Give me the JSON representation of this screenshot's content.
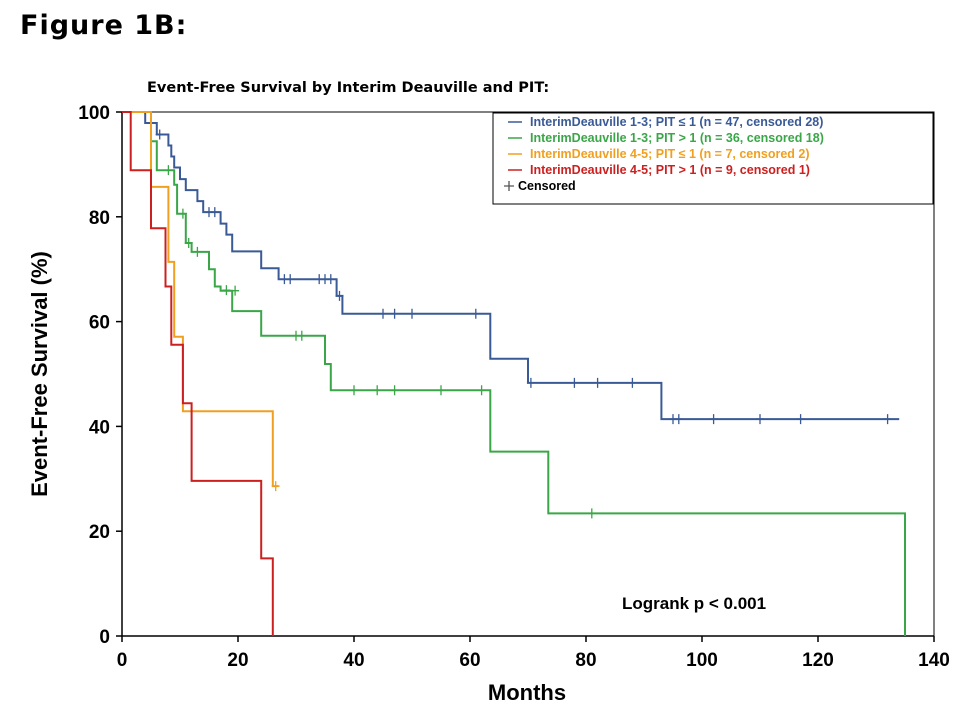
{
  "figure_label": "Figure 1B:",
  "chart_data": {
    "type": "line",
    "subtype": "kaplan-meier step",
    "title": "Event-Free Survival by Interim Deauville and PIT:",
    "xlabel": "Months",
    "ylabel": "Event-Free Survival (%)",
    "xlim": [
      0,
      140
    ],
    "ylim": [
      0,
      100
    ],
    "xticks": [
      "0",
      "20",
      "40",
      "60",
      "80",
      "100",
      "120",
      "140"
    ],
    "yticks": [
      "0",
      "20",
      "40",
      "60",
      "80",
      "100"
    ],
    "grid": false,
    "legend_position": "top-right",
    "annotation": "Logrank p < 0.001",
    "censored_legend_label": "Censored",
    "series": [
      {
        "name": "InterimDeauville 1-3; PIT ≤ 1 (n = 47, censored 28)",
        "color": "#3a5a96",
        "steps": [
          [
            0,
            100
          ],
          [
            4,
            100
          ],
          [
            4,
            97.9
          ],
          [
            6,
            97.9
          ],
          [
            6,
            95.7
          ],
          [
            8,
            95.7
          ],
          [
            8,
            93.6
          ],
          [
            8.5,
            93.6
          ],
          [
            8.5,
            91.5
          ],
          [
            9,
            91.5
          ],
          [
            9,
            89.4
          ],
          [
            10,
            89.4
          ],
          [
            10,
            87.2
          ],
          [
            11,
            87.2
          ],
          [
            11,
            85.1
          ],
          [
            13,
            85.1
          ],
          [
            13,
            83.0
          ],
          [
            14,
            83.0
          ],
          [
            14,
            80.9
          ],
          [
            17,
            80.9
          ],
          [
            17,
            78.7
          ],
          [
            18,
            78.7
          ],
          [
            18,
            76.6
          ],
          [
            19,
            76.6
          ],
          [
            19,
            73.4
          ],
          [
            24,
            73.4
          ],
          [
            24,
            70.2
          ],
          [
            27,
            70.2
          ],
          [
            27,
            68.1
          ],
          [
            37,
            68.1
          ],
          [
            37,
            64.9
          ],
          [
            38,
            64.9
          ],
          [
            38,
            61.5
          ],
          [
            63.5,
            61.5
          ],
          [
            63.5,
            52.9
          ],
          [
            70,
            52.9
          ],
          [
            70,
            48.3
          ],
          [
            93,
            48.3
          ],
          [
            93,
            41.4
          ],
          [
            134,
            41.4
          ]
        ],
        "censored": [
          [
            5,
            97.9
          ],
          [
            6.5,
            95.7
          ],
          [
            15,
            80.9
          ],
          [
            16,
            80.9
          ],
          [
            28,
            68.1
          ],
          [
            29,
            68.1
          ],
          [
            34,
            68.1
          ],
          [
            35,
            68.1
          ],
          [
            36,
            68.1
          ],
          [
            37.5,
            64.9
          ],
          [
            45,
            61.5
          ],
          [
            47,
            61.5
          ],
          [
            50,
            61.5
          ],
          [
            61,
            61.5
          ],
          [
            70.5,
            48.3
          ],
          [
            78,
            48.3
          ],
          [
            82,
            48.3
          ],
          [
            88,
            48.3
          ],
          [
            95,
            41.4
          ],
          [
            96,
            41.4
          ],
          [
            102,
            41.4
          ],
          [
            110,
            41.4
          ],
          [
            117,
            41.4
          ],
          [
            132,
            41.4
          ]
        ]
      },
      {
        "name": "InterimDeauville 1-3; PIT > 1 (n = 36, censored 18)",
        "color": "#3aa648",
        "steps": [
          [
            0,
            100
          ],
          [
            5,
            100
          ],
          [
            5,
            94.4
          ],
          [
            6,
            94.4
          ],
          [
            6,
            88.9
          ],
          [
            9,
            88.9
          ],
          [
            9,
            86.1
          ],
          [
            9.5,
            86.1
          ],
          [
            9.5,
            80.6
          ],
          [
            11,
            80.6
          ],
          [
            11,
            75.0
          ],
          [
            12,
            75.0
          ],
          [
            12,
            73.3
          ],
          [
            15,
            73.3
          ],
          [
            15,
            70.0
          ],
          [
            16,
            70.0
          ],
          [
            16,
            66.7
          ],
          [
            17,
            66.7
          ],
          [
            17,
            65.9
          ],
          [
            19,
            65.9
          ],
          [
            19,
            62.0
          ],
          [
            24,
            62.0
          ],
          [
            24,
            57.3
          ],
          [
            35,
            57.3
          ],
          [
            35,
            51.9
          ],
          [
            36,
            51.9
          ],
          [
            36,
            46.9
          ],
          [
            63.5,
            46.9
          ],
          [
            63.5,
            35.2
          ],
          [
            73.5,
            35.2
          ],
          [
            73.5,
            23.4
          ],
          [
            135,
            23.4
          ],
          [
            135,
            0
          ]
        ],
        "censored": [
          [
            8,
            88.9
          ],
          [
            10.5,
            80.6
          ],
          [
            11.5,
            75.0
          ],
          [
            13,
            73.3
          ],
          [
            18,
            66.0
          ],
          [
            19.5,
            65.9
          ],
          [
            30,
            57.3
          ],
          [
            31,
            57.3
          ],
          [
            40,
            46.9
          ],
          [
            44,
            46.9
          ],
          [
            47,
            46.9
          ],
          [
            55,
            46.9
          ],
          [
            62,
            46.9
          ],
          [
            81,
            23.4
          ]
        ]
      },
      {
        "name": "InterimDeauville 4-5; PIT ≤ 1 (n = 7, censored 2)",
        "color": "#f0a020",
        "steps": [
          [
            0,
            100
          ],
          [
            5,
            100
          ],
          [
            5,
            85.7
          ],
          [
            8,
            85.7
          ],
          [
            8,
            71.4
          ],
          [
            9,
            71.4
          ],
          [
            9,
            57.1
          ],
          [
            10,
            57.1
          ],
          [
            10,
            57.1
          ],
          [
            10.5,
            57.1
          ],
          [
            10.5,
            42.9
          ],
          [
            26,
            42.9
          ],
          [
            26,
            28.6
          ],
          [
            27,
            28.6
          ]
        ],
        "censored": [
          [
            26.5,
            28.6
          ]
        ]
      },
      {
        "name": "InterimDeauville 4-5; PIT > 1 (n = 9, censored 1)",
        "color": "#cc2020",
        "steps": [
          [
            0,
            100
          ],
          [
            1.5,
            100
          ],
          [
            1.5,
            88.9
          ],
          [
            5,
            88.9
          ],
          [
            5,
            77.8
          ],
          [
            7.5,
            77.8
          ],
          [
            7.5,
            66.7
          ],
          [
            8.5,
            66.7
          ],
          [
            8.5,
            55.6
          ],
          [
            10.5,
            55.6
          ],
          [
            10.5,
            44.4
          ],
          [
            12,
            44.4
          ],
          [
            12,
            29.6
          ],
          [
            24,
            29.6
          ],
          [
            24,
            14.8
          ],
          [
            26,
            14.8
          ],
          [
            26,
            0
          ]
        ],
        "censored": []
      }
    ]
  }
}
